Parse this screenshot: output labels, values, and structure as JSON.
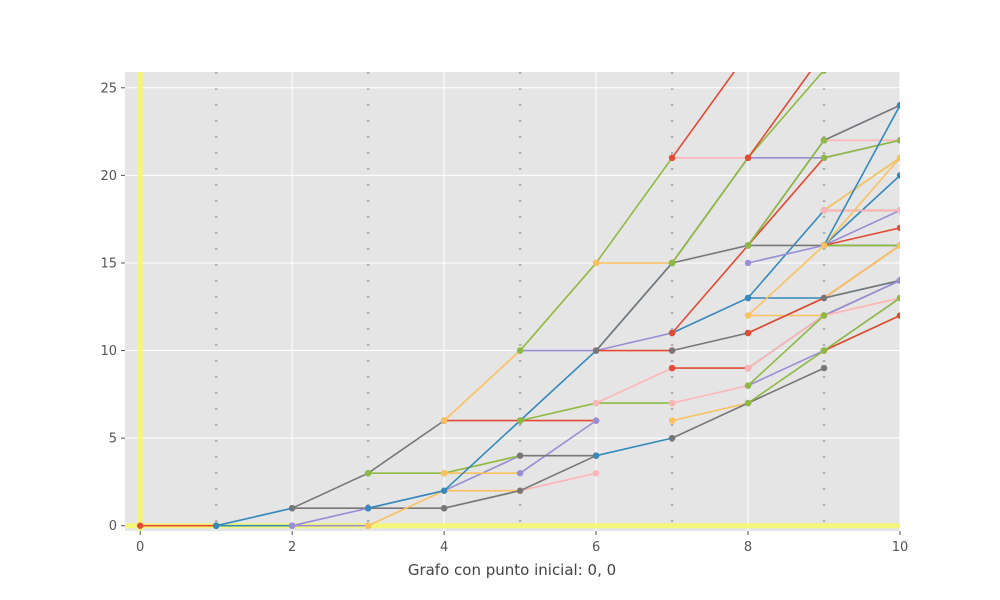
{
  "chart_data": {
    "type": "line",
    "title": "",
    "xlabel": "Grafo con punto inicial: 0, 0",
    "ylabel": "",
    "xlim": [
      -0.2,
      10
    ],
    "ylim": [
      -0.3,
      25.9
    ],
    "xticks": [
      0,
      2,
      4,
      6,
      8,
      10
    ],
    "yticks": [
      0,
      5,
      10,
      15,
      20,
      25
    ],
    "grid": true,
    "background": "#e5e5e5",
    "highlight_color": "#f5f57a",
    "palette": [
      "#e24a33",
      "#348abd",
      "#988ed5",
      "#777777",
      "#fbc15e",
      "#8eba42",
      "#ffb5b8"
    ],
    "series": [
      {
        "x": [
          0,
          1
        ],
        "y": [
          0,
          0
        ],
        "color": "#e24a33"
      },
      {
        "x": [
          1,
          2
        ],
        "y": [
          0,
          0
        ],
        "color": "#348abd"
      },
      {
        "x": [
          1,
          2
        ],
        "y": [
          0,
          1
        ],
        "color": "#348abd"
      },
      {
        "x": [
          2,
          3
        ],
        "y": [
          0,
          0
        ],
        "color": "#988ed5"
      },
      {
        "x": [
          2,
          3,
          4
        ],
        "y": [
          1,
          1,
          1
        ],
        "color": "#777777"
      },
      {
        "x": [
          2,
          3,
          4
        ],
        "y": [
          1,
          3,
          6
        ],
        "color": "#777777"
      },
      {
        "x": [
          2,
          3,
          4,
          5
        ],
        "y": [
          0,
          1,
          2,
          4
        ],
        "color": "#988ed5"
      },
      {
        "x": [
          3,
          4
        ],
        "y": [
          0,
          2
        ],
        "color": "#fbc15e"
      },
      {
        "x": [
          3,
          4,
          5
        ],
        "y": [
          3,
          3,
          4
        ],
        "color": "#8eba42"
      },
      {
        "x": [
          4,
          5
        ],
        "y": [
          2,
          2
        ],
        "color": "#fbc15e"
      },
      {
        "x": [
          4,
          5
        ],
        "y": [
          3,
          3
        ],
        "color": "#fbc15e"
      },
      {
        "x": [
          4,
          5,
          6
        ],
        "y": [
          6,
          6,
          6
        ],
        "color": "#e24a33"
      },
      {
        "x": [
          4,
          5,
          6
        ],
        "y": [
          6,
          10,
          15
        ],
        "color": "#fbc15e"
      },
      {
        "x": [
          3,
          4,
          5,
          6,
          7
        ],
        "y": [
          1,
          2,
          6,
          10,
          15
        ],
        "color": "#348abd"
      },
      {
        "x": [
          5,
          6
        ],
        "y": [
          2,
          3
        ],
        "color": "#ffb5b8"
      },
      {
        "x": [
          5,
          6
        ],
        "y": [
          3,
          6
        ],
        "color": "#988ed5"
      },
      {
        "x": [
          5,
          6
        ],
        "y": [
          4,
          4
        ],
        "color": "#777777"
      },
      {
        "x": [
          5,
          6,
          7
        ],
        "y": [
          10,
          10,
          11
        ],
        "color": "#988ed5"
      },
      {
        "x": [
          5,
          6,
          7
        ],
        "y": [
          10,
          15,
          21
        ],
        "color": "#8eba42"
      },
      {
        "x": [
          4,
          5,
          6
        ],
        "y": [
          1,
          2,
          4
        ],
        "color": "#777777"
      },
      {
        "x": [
          5,
          6,
          7
        ],
        "y": [
          6,
          7,
          7
        ],
        "color": "#8eba42"
      },
      {
        "x": [
          6,
          7
        ],
        "y": [
          10,
          10
        ],
        "color": "#e24a33"
      },
      {
        "x": [
          6,
          7
        ],
        "y": [
          15,
          15
        ],
        "color": "#fbc15e"
      },
      {
        "x": [
          6,
          7
        ],
        "y": [
          7,
          9
        ],
        "color": "#ffb5b8"
      },
      {
        "x": [
          6,
          7
        ],
        "y": [
          4,
          5
        ],
        "color": "#348abd"
      },
      {
        "x": [
          7,
          8
        ],
        "y": [
          21,
          21
        ],
        "color": "#ffb5b8"
      },
      {
        "x": [
          7,
          8,
          9
        ],
        "y": [
          15,
          16,
          22
        ],
        "color": "#777777"
      },
      {
        "x": [
          6,
          7,
          8
        ],
        "y": [
          10,
          15,
          21
        ],
        "color": "#777777"
      },
      {
        "x": [
          7,
          8,
          9
        ],
        "y": [
          11,
          13,
          18
        ],
        "color": "#348abd"
      },
      {
        "x": [
          7,
          8,
          9
        ],
        "y": [
          10,
          11,
          13
        ],
        "color": "#777777"
      },
      {
        "x": [
          7,
          8
        ],
        "y": [
          9,
          9
        ],
        "color": "#e24a33"
      },
      {
        "x": [
          7,
          8
        ],
        "y": [
          7,
          8
        ],
        "color": "#ffb5b8"
      },
      {
        "x": [
          7,
          8
        ],
        "y": [
          6,
          7
        ],
        "color": "#fbc15e"
      },
      {
        "x": [
          7,
          8,
          9
        ],
        "y": [
          5,
          7,
          9
        ],
        "color": "#777777"
      },
      {
        "x": [
          7,
          8,
          9
        ],
        "y": [
          11,
          16,
          21
        ],
        "color": "#e24a33"
      },
      {
        "x": [
          8,
          9,
          10
        ],
        "y": [
          21,
          21,
          22
        ],
        "color": "#988ed5"
      },
      {
        "x": [
          8,
          9,
          10
        ],
        "y": [
          16,
          16,
          16
        ],
        "color": "#777777"
      },
      {
        "x": [
          8,
          9,
          10
        ],
        "y": [
          15,
          16,
          18
        ],
        "color": "#988ed5"
      },
      {
        "x": [
          8,
          9,
          10
        ],
        "y": [
          13,
          13,
          14
        ],
        "color": "#348abd"
      },
      {
        "x": [
          8,
          9,
          10
        ],
        "y": [
          12,
          12,
          13
        ],
        "color": "#fbc15e"
      },
      {
        "x": [
          8,
          9,
          10
        ],
        "y": [
          11,
          13,
          16
        ],
        "color": "#e24a33"
      },
      {
        "x": [
          8,
          9,
          10
        ],
        "y": [
          9,
          12,
          14
        ],
        "color": "#777777"
      },
      {
        "x": [
          8,
          9,
          10
        ],
        "y": [
          8,
          10,
          13
        ],
        "color": "#988ed5"
      },
      {
        "x": [
          8,
          9,
          10
        ],
        "y": [
          7,
          10,
          12
        ],
        "color": "#8eba42"
      },
      {
        "x": [
          9,
          10
        ],
        "y": [
          22,
          22
        ],
        "color": "#ffb5b8"
      },
      {
        "x": [
          9,
          10
        ],
        "y": [
          21,
          22
        ],
        "color": "#8eba42"
      },
      {
        "x": [
          9,
          10
        ],
        "y": [
          18,
          18
        ],
        "color": "#e24a33"
      },
      {
        "x": [
          9,
          10
        ],
        "y": [
          16,
          17
        ],
        "color": "#e24a33"
      },
      {
        "x": [
          9,
          10
        ],
        "y": [
          18,
          21
        ],
        "color": "#8eba42"
      },
      {
        "x": [
          9,
          10
        ],
        "y": [
          16,
          20
        ],
        "color": "#348abd"
      },
      {
        "x": [
          9,
          10
        ],
        "y": [
          16,
          16
        ],
        "color": "#8eba42"
      },
      {
        "x": [
          9,
          10
        ],
        "y": [
          13,
          16
        ],
        "color": "#fbc15e"
      },
      {
        "x": [
          9,
          10
        ],
        "y": [
          13,
          14
        ],
        "color": "#777777"
      },
      {
        "x": [
          9,
          10
        ],
        "y": [
          12,
          14
        ],
        "color": "#988ed5"
      },
      {
        "x": [
          9,
          10
        ],
        "y": [
          12,
          13
        ],
        "color": "#ffb5b8"
      },
      {
        "x": [
          9,
          10
        ],
        "y": [
          10,
          12
        ],
        "color": "#e24a33"
      },
      {
        "x": [
          9,
          10
        ],
        "y": [
          10,
          13
        ],
        "color": "#8eba42"
      },
      {
        "x": [
          9,
          10
        ],
        "y": [
          22,
          24
        ],
        "color": "#988ed5"
      },
      {
        "x": [
          9,
          10
        ],
        "y": [
          18,
          21
        ],
        "color": "#fbc15e"
      },
      {
        "x": [
          9,
          10
        ],
        "y": [
          18,
          18
        ],
        "color": "#ffb5b8"
      },
      {
        "x": [
          9,
          10
        ],
        "y": [
          22,
          24
        ],
        "color": "#777777"
      },
      {
        "x": [
          9,
          10
        ],
        "y": [
          16,
          21
        ],
        "color": "#fbc15e"
      },
      {
        "x": [
          9,
          10
        ],
        "y": [
          16,
          24
        ],
        "color": "#348abd"
      },
      {
        "x": [
          8,
          9
        ],
        "y": [
          16,
          22
        ],
        "color": "#8eba42"
      },
      {
        "x": [
          7,
          8,
          9,
          10
        ],
        "y": [
          15,
          21,
          26,
          31
        ],
        "color": "#8eba42"
      },
      {
        "x": [
          8,
          9
        ],
        "y": [
          21,
          27
        ],
        "color": "#e24a33"
      },
      {
        "x": [
          7,
          8
        ],
        "y": [
          21,
          27
        ],
        "color": "#e24a33"
      },
      {
        "x": [
          8,
          9
        ],
        "y": [
          12,
          16
        ],
        "color": "#fbc15e"
      },
      {
        "x": [
          8,
          9
        ],
        "y": [
          9,
          12
        ],
        "color": "#ffb5b8"
      },
      {
        "x": [
          8,
          9
        ],
        "y": [
          8,
          12
        ],
        "color": "#8eba42"
      }
    ]
  }
}
